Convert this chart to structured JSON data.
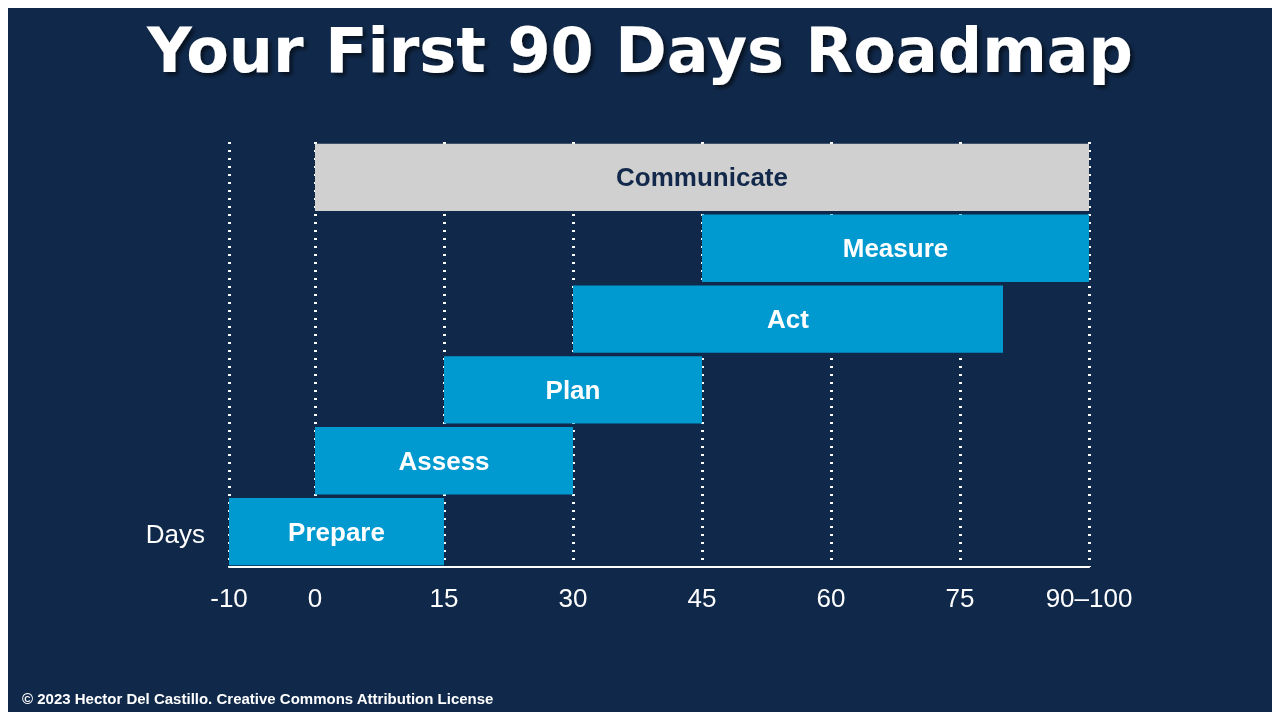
{
  "chart_data": {
    "type": "bar",
    "orientation": "horizontal",
    "title": "Your First 90 Days Roadmap",
    "xlabel": "Days",
    "categories": [
      "Communicate",
      "Measure",
      "Act",
      "Plan",
      "Assess",
      "Prepare"
    ],
    "values": [
      90,
      45,
      50,
      30,
      30,
      25
    ],
    "base": [
      0,
      45,
      30,
      15,
      0,
      -10
    ],
    "colors": [
      "#d0d0d0",
      "#0099d0",
      "#0099d0",
      "#0099d0",
      "#0099d0",
      "#0099d0"
    ],
    "xlim": [
      -10,
      90
    ],
    "xticks": [
      -10,
      0,
      15,
      30,
      45,
      60,
      75,
      {
        "value": 90,
        "label": "90–100"
      }
    ],
    "grid": "x",
    "tick_labels": "x",
    "annotations": [
      "© 2023 Hector Del Castillo. Creative Commons Attribution License"
    ]
  }
}
